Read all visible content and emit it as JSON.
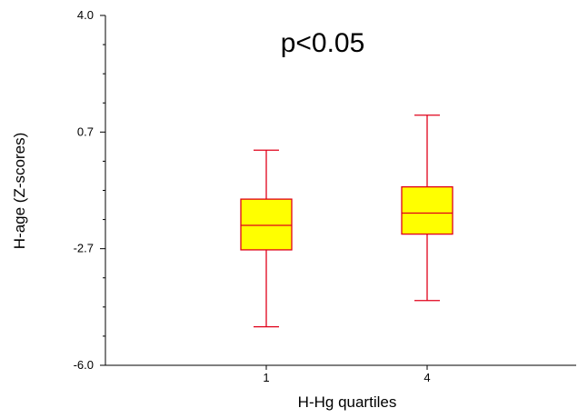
{
  "chart_data": {
    "type": "box",
    "title": "",
    "annotation": "p<0.05",
    "xlabel": "H-Hg quartiles",
    "ylabel": "H-age (Z-scores)",
    "ylim": [
      -6.0,
      4.0
    ],
    "yticks_labeled": [
      "4.0",
      "0.7",
      "-2.7",
      "-6.0"
    ],
    "categories": [
      "1",
      "4"
    ],
    "boxes": [
      {
        "category": "1",
        "whisker_low": -4.9,
        "q1": -2.7,
        "median": -2.0,
        "q3": -1.25,
        "whisker_high": 0.15
      },
      {
        "category": "4",
        "whisker_low": -4.15,
        "q1": -2.25,
        "median": -1.65,
        "q3": -0.9,
        "whisker_high": 1.15
      }
    ],
    "colors": {
      "box_fill": "#ffff00",
      "box_stroke": "#e0001a",
      "axis": "#000000"
    }
  }
}
